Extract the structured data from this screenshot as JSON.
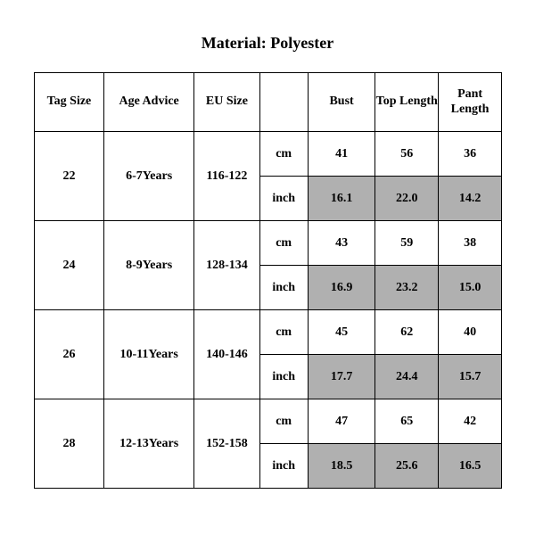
{
  "title": "Material: Polyester",
  "colors": {
    "background": "#ffffff",
    "text": "#000000",
    "border": "#000000",
    "shaded": "#b0b0b0"
  },
  "typography": {
    "font_family": "Times New Roman",
    "title_fontsize_pt": 14,
    "cell_fontsize_pt": 10,
    "font_weight": "bold"
  },
  "table": {
    "columns": [
      {
        "key": "tag_size",
        "label": "Tag Size"
      },
      {
        "key": "age_advice",
        "label": "Age Advice"
      },
      {
        "key": "eu_size",
        "label": "EU Size"
      },
      {
        "key": "unit",
        "label": ""
      },
      {
        "key": "bust",
        "label": "Bust"
      },
      {
        "key": "top_length",
        "label": "Top Length"
      },
      {
        "key": "pant_length",
        "label": "Pant Length"
      }
    ],
    "unit_labels": {
      "cm": "cm",
      "inch": "inch"
    },
    "inch_row_shaded": true,
    "rows": [
      {
        "tag_size": "22",
        "age_advice": "6-7Years",
        "eu_size": "116-122",
        "cm": {
          "bust": "41",
          "top_length": "56",
          "pant_length": "36"
        },
        "inch": {
          "bust": "16.1",
          "top_length": "22.0",
          "pant_length": "14.2"
        }
      },
      {
        "tag_size": "24",
        "age_advice": "8-9Years",
        "eu_size": "128-134",
        "cm": {
          "bust": "43",
          "top_length": "59",
          "pant_length": "38"
        },
        "inch": {
          "bust": "16.9",
          "top_length": "23.2",
          "pant_length": "15.0"
        }
      },
      {
        "tag_size": "26",
        "age_advice": "10-11Years",
        "eu_size": "140-146",
        "cm": {
          "bust": "45",
          "top_length": "62",
          "pant_length": "40"
        },
        "inch": {
          "bust": "17.7",
          "top_length": "24.4",
          "pant_length": "15.7"
        }
      },
      {
        "tag_size": "28",
        "age_advice": "12-13Years",
        "eu_size": "152-158",
        "cm": {
          "bust": "47",
          "top_length": "65",
          "pant_length": "42"
        },
        "inch": {
          "bust": "18.5",
          "top_length": "25.6",
          "pant_length": "16.5"
        }
      }
    ]
  }
}
